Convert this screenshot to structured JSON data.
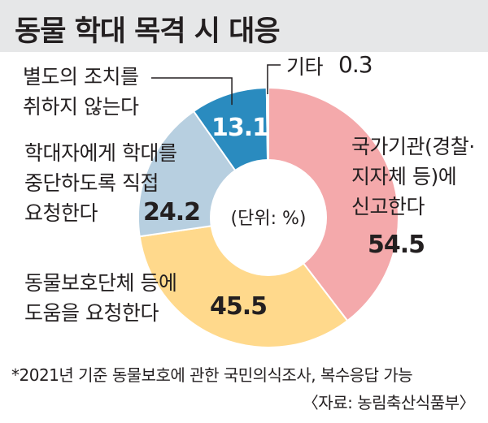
{
  "header": {
    "title": "동물 학대 목격 시 대응"
  },
  "chart_data": {
    "type": "pie",
    "donut": true,
    "center_label": "(단위: %)",
    "title": "동물 학대 목격 시 대응",
    "categories": [
      [
        "국가기관(경찰·",
        "지자체 등)에",
        "신고한다"
      ],
      [
        "동물보호단체 등에",
        "도움을 요청한다"
      ],
      [
        "학대자에게 학대를",
        "중단하도록 직접",
        "요청한다"
      ],
      [
        "별도의 조치를",
        "취하지 않는다"
      ],
      [
        "기타"
      ]
    ],
    "values": [
      54.5,
      45.5,
      24.2,
      13.1,
      0.3
    ],
    "value_labels": [
      "54.5",
      "45.5",
      "24.2",
      "13.1",
      "0.3"
    ],
    "colors": [
      "#f4a9ab",
      "#ffd98c",
      "#b7cfe0",
      "#2a8bbf",
      "#231f20"
    ]
  },
  "footnote": {
    "survey": "*2021년 기준 동물보호에 관한 국민의식조사, 복수응답 가능",
    "source": "〈자료: 농림축산식품부〉"
  }
}
